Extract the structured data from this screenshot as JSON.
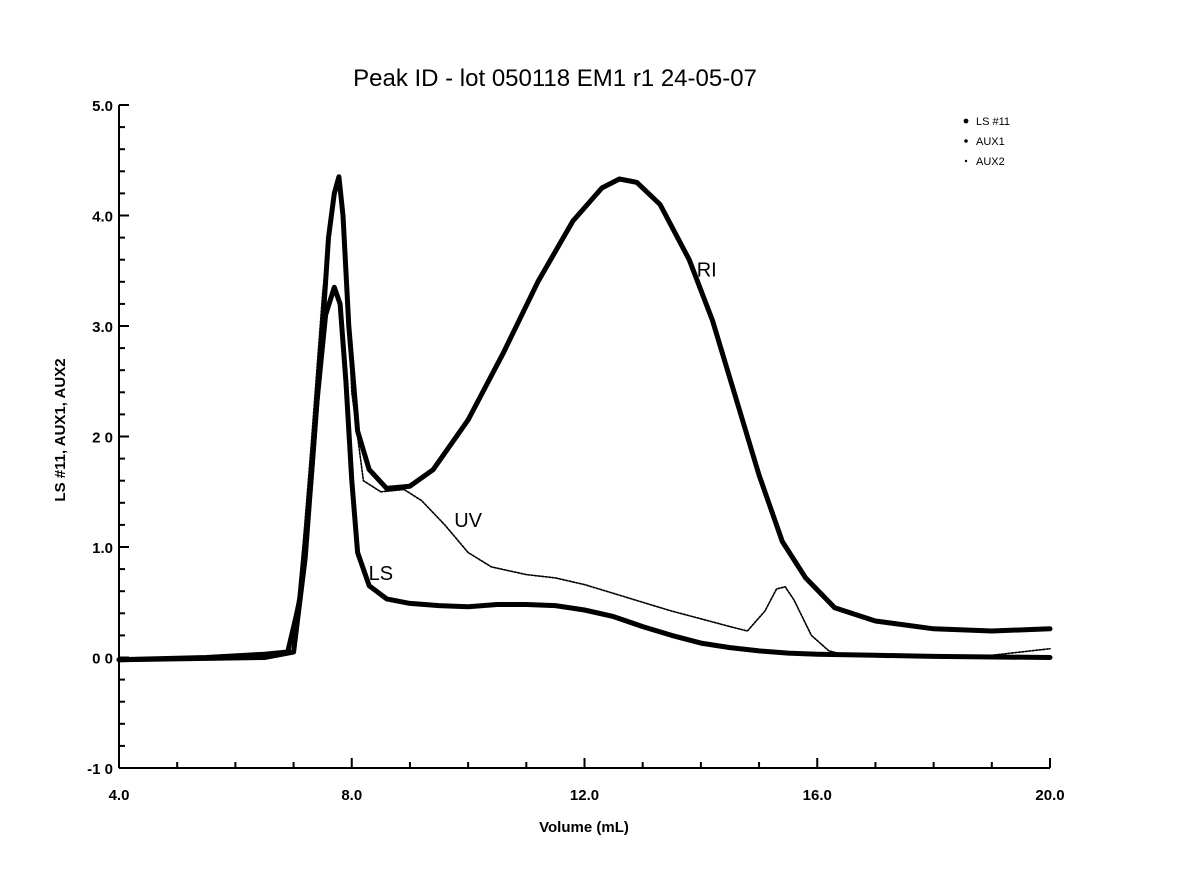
{
  "chart_data": {
    "type": "line",
    "title": "Peak ID - lot 050118 EM1 r1 24-05-07",
    "xlabel": "Volume (mL)",
    "ylabel": "LS #11, AUX1, AUX2",
    "xlim": [
      4.0,
      20.0
    ],
    "ylim": [
      -1.0,
      5.0
    ],
    "x_tick_labels": [
      "4.0",
      "8.0",
      "12.0",
      "16.0",
      "20.0"
    ],
    "y_tick_labels": [
      "-1 0",
      "0 0",
      "1.0",
      "2 0",
      "3.0",
      "4.0",
      "5.0"
    ],
    "grid": false,
    "legend_position": "top-right",
    "legend": [
      "LS #11",
      "AUX1",
      "AUX2"
    ],
    "annotations": [
      {
        "text": "RI",
        "x": 14.1,
        "y": 3.45
      },
      {
        "text": "UV",
        "x": 10.0,
        "y": 1.18
      },
      {
        "text": "LS",
        "x": 8.5,
        "y": 0.7
      }
    ],
    "series": [
      {
        "name": "AUX1",
        "color": "#000000",
        "style": "thick",
        "x": [
          4.0,
          5.5,
          6.5,
          6.9,
          7.1,
          7.3,
          7.5,
          7.6,
          7.7,
          7.78,
          7.85,
          7.95,
          8.1,
          8.3,
          8.6,
          9.0,
          9.4,
          10.0,
          10.6,
          11.2,
          11.8,
          12.3,
          12.6,
          12.9,
          13.3,
          13.8,
          14.2,
          14.6,
          15.0,
          15.4,
          15.8,
          16.3,
          17.0,
          18.0,
          19.0,
          20.0
        ],
        "y": [
          -0.02,
          0.0,
          0.03,
          0.05,
          0.5,
          1.6,
          3.0,
          3.8,
          4.2,
          4.35,
          4.0,
          3.0,
          2.05,
          1.7,
          1.53,
          1.55,
          1.7,
          2.15,
          2.75,
          3.4,
          3.95,
          4.25,
          4.33,
          4.3,
          4.1,
          3.6,
          3.05,
          2.35,
          1.65,
          1.05,
          0.72,
          0.45,
          0.33,
          0.26,
          0.24,
          0.26
        ]
      },
      {
        "name": "LS #11",
        "color": "#000000",
        "style": "thick",
        "x": [
          4.0,
          6.5,
          7.0,
          7.2,
          7.4,
          7.55,
          7.7,
          7.8,
          7.9,
          8.0,
          8.1,
          8.3,
          8.6,
          9.0,
          9.5,
          10.0,
          10.5,
          11.0,
          11.5,
          12.0,
          12.5,
          13.0,
          13.5,
          14.0,
          14.5,
          15.0,
          15.5,
          16.0,
          17.0,
          18.0,
          20.0
        ],
        "y": [
          -0.02,
          0.0,
          0.05,
          0.9,
          2.3,
          3.1,
          3.35,
          3.2,
          2.5,
          1.6,
          0.95,
          0.65,
          0.53,
          0.49,
          0.47,
          0.46,
          0.48,
          0.48,
          0.47,
          0.43,
          0.37,
          0.28,
          0.2,
          0.13,
          0.09,
          0.06,
          0.04,
          0.03,
          0.02,
          0.01,
          0.0
        ]
      },
      {
        "name": "AUX2",
        "color": "#000000",
        "style": "thin",
        "x": [
          4.0,
          6.5,
          6.9,
          7.1,
          7.3,
          7.5,
          7.65,
          7.78,
          7.9,
          8.0,
          8.2,
          8.5,
          8.9,
          9.2,
          9.6,
          10.0,
          10.4,
          11.0,
          11.5,
          12.0,
          12.5,
          13.0,
          13.5,
          14.0,
          14.5,
          14.8,
          15.1,
          15.3,
          15.45,
          15.6,
          15.9,
          16.2,
          16.5,
          17.0,
          18.0,
          19.0,
          20.0
        ],
        "y": [
          -0.02,
          0.0,
          0.05,
          0.6,
          1.9,
          3.3,
          4.05,
          4.3,
          3.6,
          2.4,
          1.6,
          1.5,
          1.52,
          1.42,
          1.2,
          0.95,
          0.82,
          0.75,
          0.72,
          0.66,
          0.58,
          0.5,
          0.42,
          0.35,
          0.28,
          0.24,
          0.42,
          0.62,
          0.64,
          0.52,
          0.2,
          0.06,
          0.02,
          0.01,
          0.0,
          0.02,
          0.08
        ]
      }
    ]
  }
}
